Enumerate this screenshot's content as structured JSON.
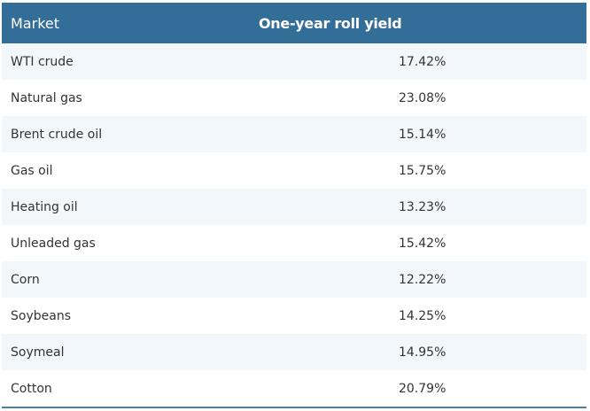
{
  "table": {
    "headers": {
      "market": "Market",
      "yield": "One-year roll yield"
    },
    "rows": [
      {
        "market": "WTI crude",
        "yield": "17.42%"
      },
      {
        "market": "Natural gas",
        "yield": "23.08%"
      },
      {
        "market": "Brent crude oil",
        "yield": "15.14%"
      },
      {
        "market": "Gas oil",
        "yield": "15.75%"
      },
      {
        "market": "Heating oil",
        "yield": "13.23%"
      },
      {
        "market": "Unleaded gas",
        "yield": "15.42%"
      },
      {
        "market": "Corn",
        "yield": "12.22%"
      },
      {
        "market": "Soybeans",
        "yield": "14.25%"
      },
      {
        "market": "Soymeal",
        "yield": "14.95%"
      },
      {
        "market": "Cotton",
        "yield": "20.79%"
      }
    ]
  },
  "colors": {
    "header_bg": "#336e99",
    "row_alt_bg": "#f2f7fc",
    "text": "#333333"
  }
}
